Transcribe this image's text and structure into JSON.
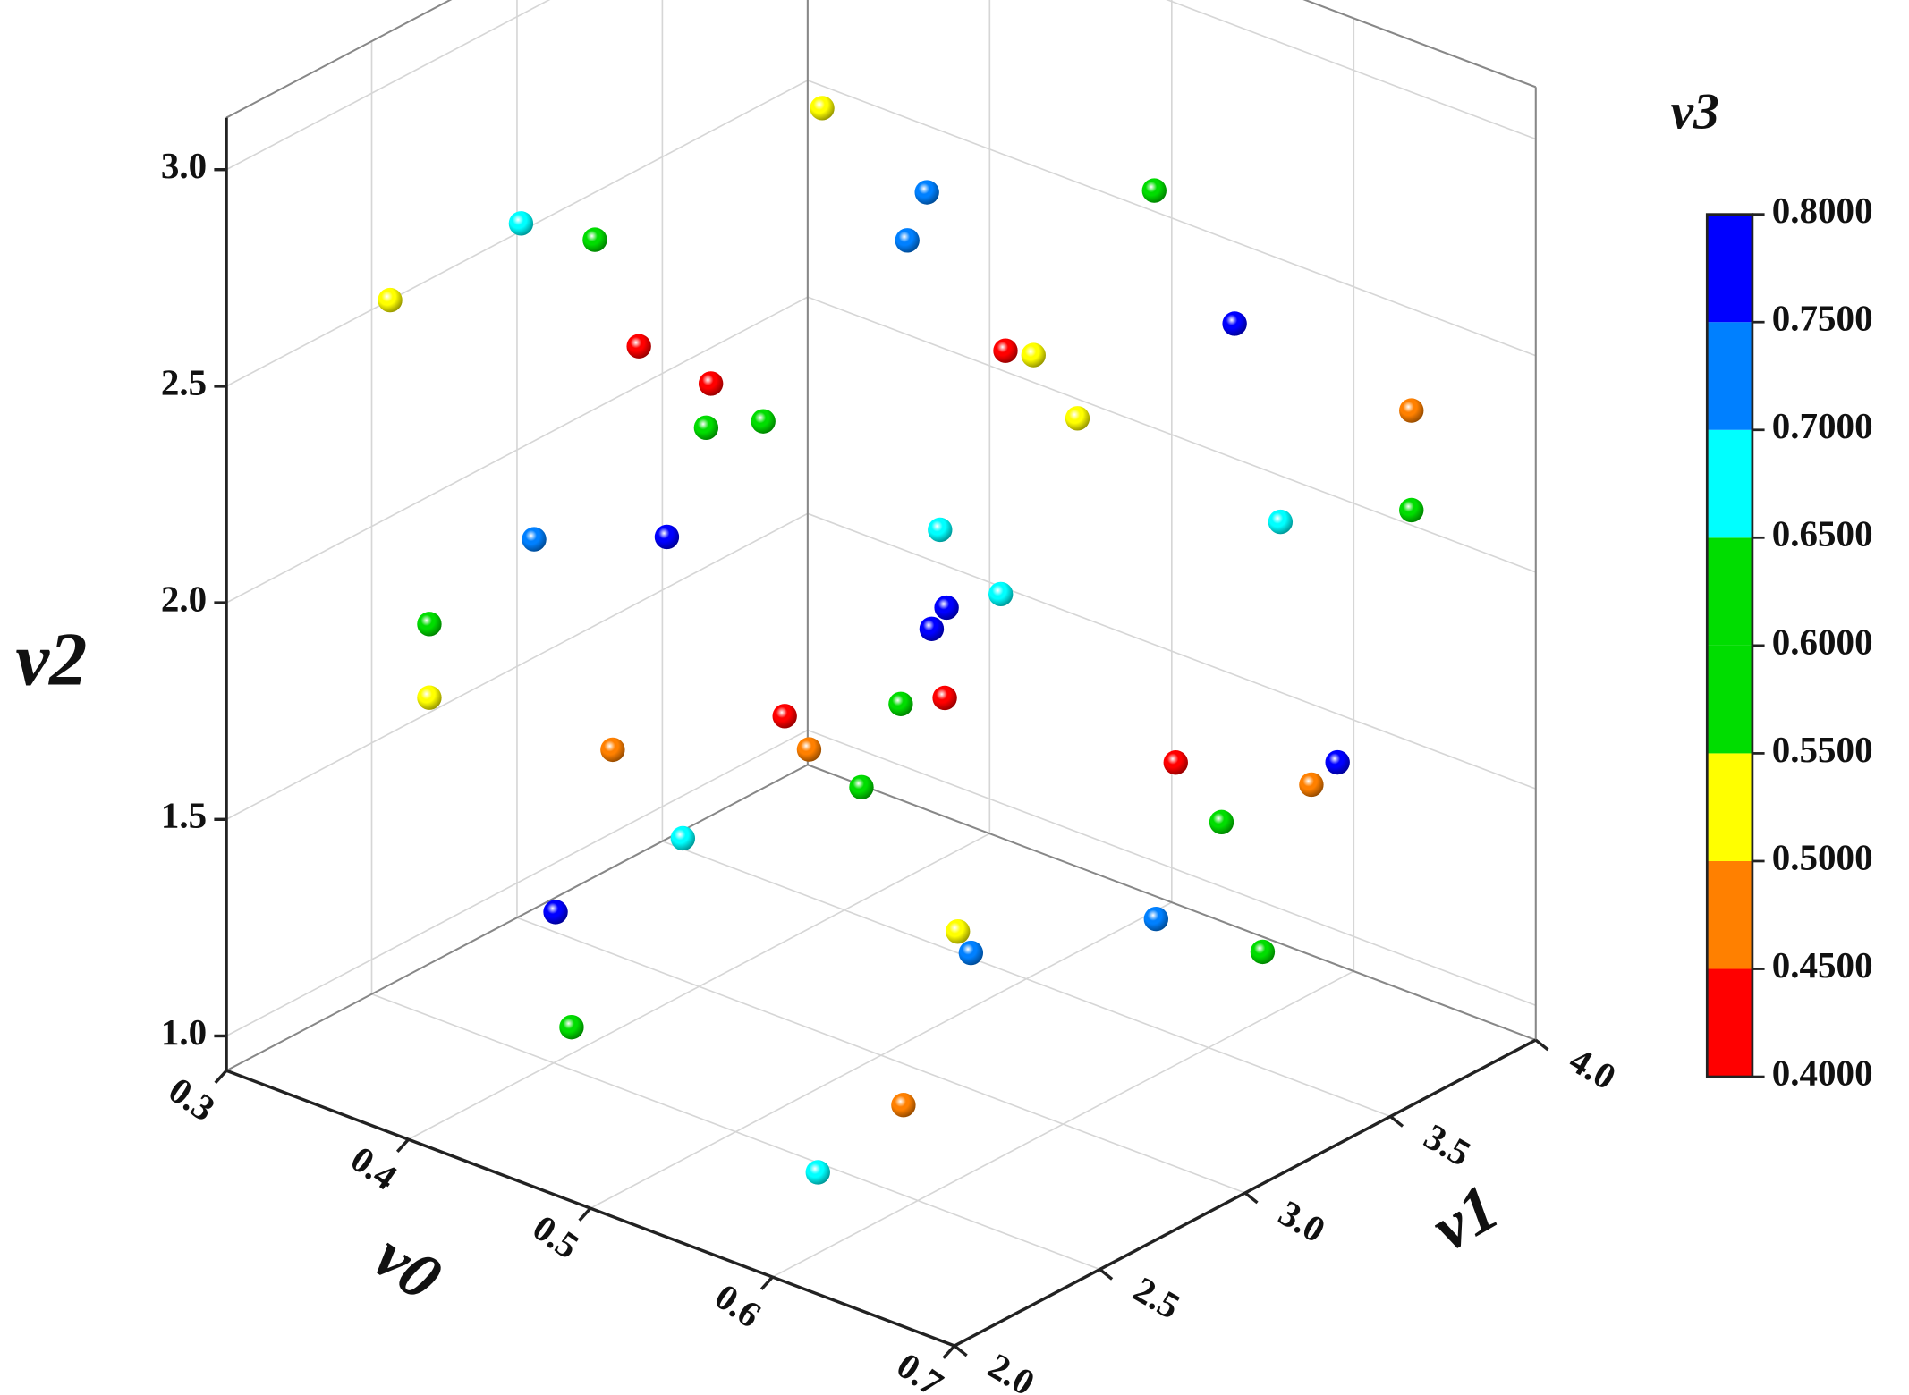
{
  "chart_data": {
    "type": "scatter3d",
    "x_label": "v0",
    "y_label": "v1",
    "z_label": "v2",
    "colorbar_label": "v3",
    "xlim": [
      0.3,
      0.7
    ],
    "ylim": [
      2,
      4
    ],
    "zlim": [
      0.92,
      3.12
    ],
    "xticks": [
      0.3,
      0.4,
      0.5,
      0.6,
      0.7
    ],
    "yticks": [
      {
        "value": 2,
        "label": "2.0"
      },
      2.5,
      {
        "value": 3,
        "label": "3.0"
      },
      3.5,
      {
        "value": 4,
        "label": "4.0"
      }
    ],
    "zticks": [
      {
        "value": 1,
        "label": "1.0"
      },
      1.5,
      {
        "value": 2,
        "label": "2.0"
      },
      2.5,
      {
        "value": 3,
        "label": "3.0"
      }
    ],
    "grid": true,
    "colorbar": {
      "ticks": [
        {
          "value": 0.4,
          "label": "0.4000"
        },
        {
          "value": 0.45,
          "label": "0.4500"
        },
        {
          "value": 0.5,
          "label": "0.5000"
        },
        {
          "value": 0.55,
          "label": "0.5500"
        },
        {
          "value": 0.6,
          "label": "0.6000"
        },
        {
          "value": 0.65,
          "label": "0.6500"
        },
        {
          "value": 0.7,
          "label": "0.7000"
        },
        {
          "value": 0.75,
          "label": "0.7500"
        },
        {
          "value": 0.8,
          "label": "0.8000"
        }
      ],
      "colors": [
        "#ff0000",
        "#ff8000",
        "#ffff00",
        "#00dd00",
        "#00dd00",
        "#00ffff",
        "#0080ff",
        "#0000ff"
      ]
    },
    "x": [
      0.482,
      0.514,
      0.583,
      0.39,
      0.413,
      0.508,
      0.35,
      0.608,
      0.426,
      0.538,
      0.547,
      0.448,
      0.662,
      0.447,
      0.464,
      0.56,
      0.662,
      0.622,
      0.518,
      0.394,
      0.435,
      0.537,
      0.52,
      0.515,
      0.362,
      0.362,
      0.506,
      0.519,
      0.471,
      0.418,
      0.478,
      0.59,
      0.639,
      0.494,
      0.631,
      0.604,
      0.439,
      0.401,
      0.584,
      0.523,
      0.527,
      0.617,
      0.405,
      0.64,
      0.593
    ],
    "y": [
      2.91,
      3.07,
      3.42,
      2.45,
      2.56,
      3.04,
      2.25,
      3.54,
      2.63,
      3.19,
      3.23,
      2.74,
      3.81,
      2.73,
      2.82,
      3.3,
      3.81,
      3.61,
      3.09,
      2.47,
      2.67,
      3.18,
      3.1,
      3.08,
      2.31,
      2.31,
      3.03,
      3.1,
      2.85,
      2.59,
      2.89,
      3.45,
      3.7,
      2.97,
      3.66,
      3.52,
      2.7,
      2.5,
      3.42,
      3.12,
      3.14,
      3.58,
      2.53,
      2.2,
      2.2
    ],
    "z": [
      3.11,
      2.91,
      2.9,
      2.86,
      2.82,
      2.8,
      2.69,
      2.59,
      2.57,
      2.54,
      2.53,
      2.48,
      2.38,
      2.38,
      2.39,
      2.38,
      2.15,
      2.13,
      2.13,
      2.13,
      2.13,
      1.98,
      1.95,
      1.9,
      1.94,
      1.77,
      1.73,
      1.74,
      1.71,
      1.64,
      1.63,
      1.58,
      1.57,
      1.54,
      1.52,
      1.44,
      1.43,
      1.27,
      1.22,
      1.2,
      1.15,
      1.14,
      1.0,
      1.31,
      1.08
    ],
    "values": [
      0.525,
      0.725,
      0.6,
      0.675,
      0.6,
      0.725,
      0.525,
      0.775,
      0.425,
      0.425,
      0.525,
      0.425,
      0.475,
      0.6,
      0.6,
      0.525,
      0.6,
      0.675,
      0.675,
      0.725,
      0.775,
      0.675,
      0.775,
      0.775,
      0.6,
      0.525,
      0.6,
      0.425,
      0.425,
      0.475,
      0.475,
      0.425,
      0.775,
      0.6,
      0.475,
      0.6,
      0.675,
      0.775,
      0.725,
      0.525,
      0.725,
      0.6,
      0.6,
      0.475,
      0.675
    ]
  }
}
